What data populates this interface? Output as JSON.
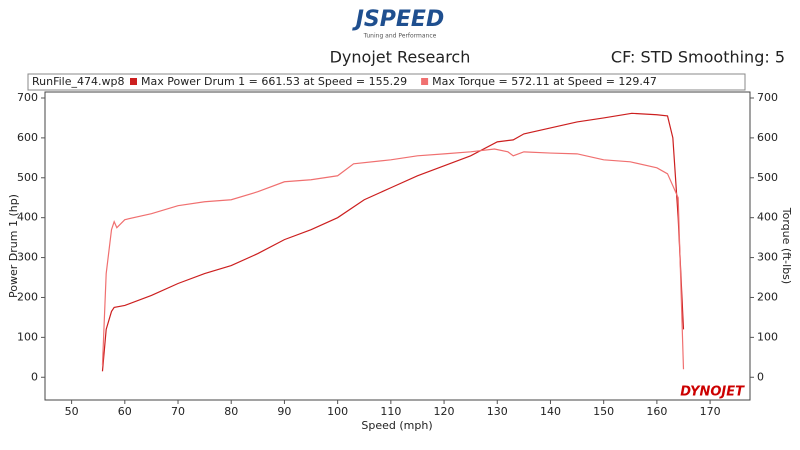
{
  "chart_data": {
    "type": "line",
    "logo": "JSPEED",
    "logo_subtitle": "Tuning and Performance",
    "title": "Dynojet Research",
    "subtitle": "CF: STD Smoothing: 5",
    "legend_title": "RunFile_474.wp8",
    "brand": "DYNOJET",
    "xlabel": "Speed (mph)",
    "ylabel": "Power Drum 1 (hp)",
    "y2label": "Torque (ft-lbs)",
    "xlim": [
      45,
      177.5
    ],
    "xticks": [
      50,
      60,
      70,
      80,
      90,
      100,
      110,
      120,
      130,
      140,
      150,
      160,
      170
    ],
    "ylim": [
      -57,
      715
    ],
    "yticks": [
      0,
      100,
      200,
      300,
      400,
      500,
      600,
      700
    ],
    "y2lim": [
      -57,
      715
    ],
    "y2ticks": [
      0,
      100,
      200,
      300,
      400,
      500,
      600,
      700
    ],
    "series": [
      {
        "name": "Max Power Drum 1 = 661.53 at Speed = 155.29",
        "color": "#cc1f1f",
        "x": [
          55.8,
          56.5,
          57.5,
          58,
          60,
          65,
          70,
          75,
          80,
          85,
          90,
          95,
          100,
          105,
          110,
          115,
          120,
          125,
          130,
          133,
          135,
          140,
          145,
          150,
          155.29,
          160,
          162,
          163,
          164,
          165
        ],
        "values": [
          15,
          120,
          165,
          175,
          180,
          205,
          235,
          260,
          280,
          310,
          345,
          370,
          400,
          445,
          475,
          505,
          530,
          555,
          590,
          595,
          610,
          625,
          640,
          650,
          661.53,
          658,
          655,
          600,
          400,
          120
        ]
      },
      {
        "name": "Max Torque = 572.11 at Speed = 129.47",
        "color": "#f07070",
        "axis": "y2",
        "x": [
          55.8,
          56.5,
          57.5,
          58,
          58.5,
          60,
          65,
          70,
          75,
          80,
          85,
          90,
          95,
          100,
          103,
          110,
          115,
          120,
          125,
          129.47,
          132,
          133,
          135,
          140,
          145,
          150,
          155,
          160,
          162,
          164,
          165
        ],
        "values": [
          30,
          260,
          370,
          390,
          375,
          395,
          410,
          430,
          440,
          445,
          465,
          490,
          495,
          505,
          535,
          545,
          555,
          560,
          565,
          572.11,
          565,
          555,
          565,
          562,
          560,
          545,
          540,
          525,
          510,
          450,
          20
        ]
      }
    ]
  }
}
